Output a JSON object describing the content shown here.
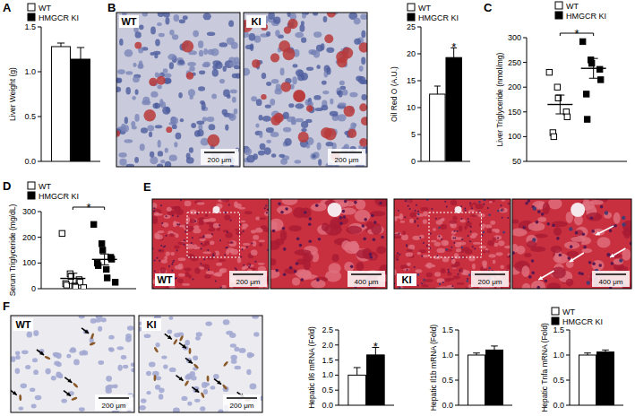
{
  "chart_data": [
    {
      "title": "A",
      "type": "bar",
      "y_label": "Liver Weight (g)",
      "categories": [
        null
      ],
      "series": [
        {
          "name": "WT",
          "color": "#ffffff",
          "values": [
            1.28
          ],
          "errors": [
            0.04
          ]
        },
        {
          "name": "HMGCR KI",
          "color": "#000000",
          "values": [
            1.14
          ],
          "errors": [
            0.13
          ]
        }
      ],
      "ylim": [
        0,
        1.5
      ],
      "yticks": [
        {
          "value": 0,
          "label": "0.0"
        },
        0.5,
        {
          "value": 1,
          "label": "1.0"
        },
        1.5
      ],
      "legend": "top-left"
    },
    {
      "type": "bar",
      "y_label": "Oil Red O (A.U.)",
      "categories": [
        null
      ],
      "series": [
        {
          "name": "WT",
          "color": "#ffffff",
          "values": [
            12.5
          ],
          "errors": [
            1.5
          ]
        },
        {
          "name": "HMGCR KI",
          "color": "#000000",
          "values": [
            19.3
          ],
          "errors": [
            1.8
          ]
        }
      ],
      "ylim": [
        0,
        25
      ],
      "yticks": [
        0,
        5,
        10,
        15,
        20,
        25
      ],
      "legend": "top-left",
      "annotations": [
        {
          "text": "*",
          "series": 1
        }
      ]
    },
    {
      "title": "C",
      "type": "dot",
      "y_label": "Liver Triglyceride (nmol/mg)",
      "series": [
        {
          "name": "WT",
          "color": "#ffffff",
          "marker": "square",
          "values": [
            230,
            200,
            178,
            150,
            140,
            108,
            100
          ],
          "mean": 165,
          "error": 19
        },
        {
          "name": "HMGCR KI",
          "color": "#000000",
          "marker": "square",
          "values": [
            292,
            255,
            248,
            236,
            215,
            186,
            135
          ],
          "mean": 238,
          "error": 20
        }
      ],
      "ylim": [
        50,
        300
      ],
      "yticks": [
        50,
        100,
        150,
        200,
        250,
        300
      ],
      "legend": "top-right",
      "annotations": [
        {
          "text": "*"
        }
      ]
    },
    {
      "title": "D",
      "type": "dot",
      "y_label": "Serum Triglyceride (mg/dL)",
      "series": [
        {
          "name": "WT",
          "color": "#ffffff",
          "marker": "square",
          "values": [
            215,
            58,
            48,
            35,
            25,
            20,
            14,
            10,
            6,
            4
          ],
          "mean": 40,
          "error": 20
        },
        {
          "name": "HMGCR KI",
          "color": "#000000",
          "marker": "square",
          "values": [
            250,
            175,
            150,
            122,
            115,
            100,
            90,
            75,
            42,
            25
          ],
          "mean": 114,
          "error": 21
        }
      ],
      "ylim": [
        0,
        300
      ],
      "yticks": [
        0,
        100,
        200,
        300
      ],
      "legend": "top-left",
      "annotations": [
        {
          "text": "*"
        }
      ]
    },
    {
      "type": "bar",
      "y_label": "Hepatic Il6 mRNA (Fold)",
      "categories": [
        null
      ],
      "series": [
        {
          "name": "WT",
          "color": "#ffffff",
          "values": [
            1.0
          ],
          "errors": [
            0.25
          ]
        },
        {
          "name": "HMGCR KI",
          "color": "#000000",
          "values": [
            1.67
          ],
          "errors": [
            0.25
          ]
        }
      ],
      "ylim": [
        0,
        2.5
      ],
      "yticks": [
        {
          "value": 0,
          "label": "0.0"
        },
        0.5,
        {
          "value": 1,
          "label": "1.0"
        },
        1.5,
        {
          "value": 2,
          "label": "2.0"
        },
        2.5
      ],
      "annotations": [
        {
          "text": "*",
          "series": 1
        }
      ]
    },
    {
      "type": "bar",
      "y_label": "Hepatic Il1b mRNA (Fold)",
      "categories": [
        null
      ],
      "series": [
        {
          "name": "WT",
          "color": "#ffffff",
          "values": [
            1.0
          ],
          "errors": [
            0.04
          ]
        },
        {
          "name": "HMGCR KI",
          "color": "#000000",
          "values": [
            1.1
          ],
          "errors": [
            0.08
          ]
        }
      ],
      "ylim": [
        0,
        1.5
      ],
      "yticks": [
        {
          "value": 0,
          "label": "0.0"
        },
        0.5,
        {
          "value": 1,
          "label": "1.0"
        },
        1.5
      ]
    },
    {
      "type": "bar",
      "y_label": "Hepatic Tnfa mRNA (Fold)",
      "categories": [
        null
      ],
      "series": [
        {
          "name": "WT",
          "color": "#ffffff",
          "values": [
            1.0
          ],
          "errors": [
            0.04
          ]
        },
        {
          "name": "HMGCR KI",
          "color": "#000000",
          "values": [
            1.06
          ],
          "errors": [
            0.04
          ]
        }
      ],
      "ylim": [
        0,
        1.5
      ],
      "yticks": [
        {
          "value": 0,
          "label": "0.0"
        },
        0.5,
        {
          "value": 1,
          "label": "1.0"
        },
        1.5
      ],
      "legend": "top-right"
    }
  ],
  "image_panels": [
    {
      "title": "B",
      "images": [
        {
          "label": "WT",
          "scale_bar": "200 μm"
        },
        {
          "label": "KI",
          "scale_bar": "200 μm"
        }
      ]
    },
    {
      "title": "E",
      "images": [
        {
          "label": "WT",
          "scale_bar": "200 μm"
        },
        {
          "scale_bar": "400 μm"
        },
        {
          "label": "KI",
          "scale_bar": "200 μm"
        },
        {
          "scale_bar": "400 μm"
        }
      ]
    },
    {
      "title": "F",
      "images": [
        {
          "label": "WT",
          "scale_bar": "200 μm"
        },
        {
          "label": "KI",
          "scale_bar": "200 μm"
        }
      ]
    }
  ]
}
